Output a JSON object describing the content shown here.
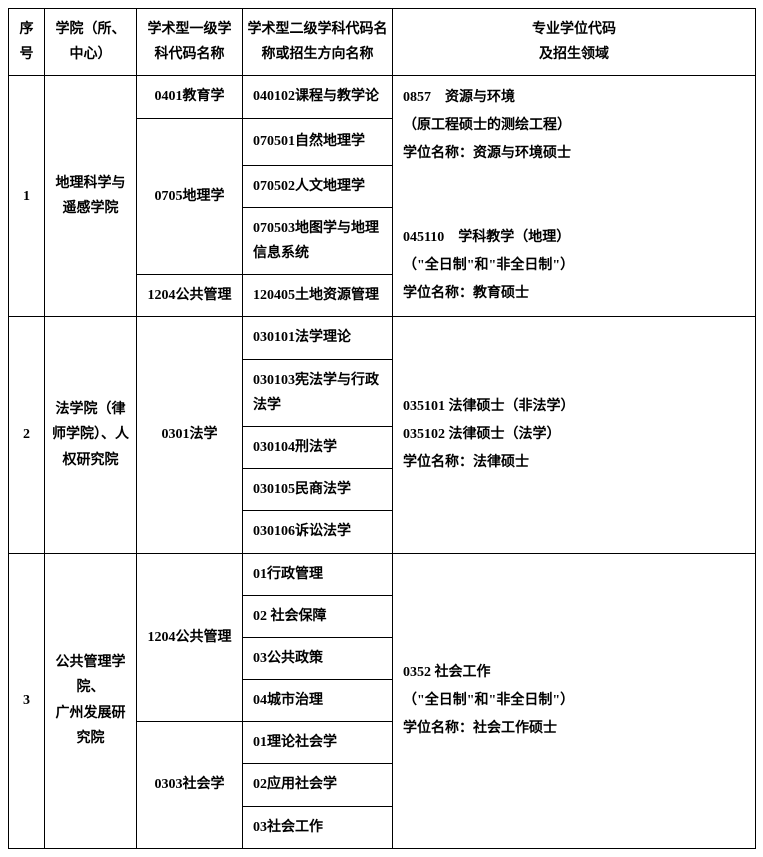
{
  "header": {
    "seq": "序号",
    "institution": "学院（所、中心）",
    "level1": "学术型一级学科代码名称",
    "level2": "学术型二级学科代码名称或招生方向名称",
    "professional": "专业学位代码\n及招生领域"
  },
  "rows": [
    {
      "seq": "1",
      "institution": "地理科学与遥感学院",
      "groups": [
        {
          "level1": "0401教育学",
          "level2": [
            "040102课程与教学论"
          ]
        },
        {
          "level1": "0705地理学",
          "level2": [
            "070501自然地理学",
            "070502人文地理学",
            "070503地图学与地理信息系统"
          ]
        },
        {
          "level1": "1204公共管理",
          "level2": [
            "120405土地资源管理"
          ]
        }
      ],
      "professional": "0857　资源与环境\n（原工程硕士的测绘工程）\n学位名称：资源与环境硕士\n\n045110　学科教学（地理）\n（\"全日制\"和\"非全日制\"）\n学位名称：教育硕士"
    },
    {
      "seq": "2",
      "institution": "法学院（律师学院）、人权研究院",
      "groups": [
        {
          "level1": "0301法学",
          "level2": [
            "030101法学理论",
            "030103宪法学与行政法学",
            "030104刑法学",
            "030105民商法学",
            "030106诉讼法学"
          ]
        }
      ],
      "professional": "035101 法律硕士（非法学）\n035102 法律硕士（法学）\n学位名称：法律硕士"
    },
    {
      "seq": "3",
      "institution": "公共管理学院、\n广州发展研究院",
      "groups": [
        {
          "level1": "1204公共管理",
          "level2": [
            "01行政管理",
            "02 社会保障",
            "03公共政策",
            "04城市治理"
          ]
        },
        {
          "level1": "0303社会学",
          "level2": [
            "01理论社会学",
            "02应用社会学",
            "03社会工作"
          ]
        }
      ],
      "professional": "0352 社会工作\n（\"全日制\"和\"非全日制\"）\n学位名称：社会工作硕士"
    }
  ]
}
